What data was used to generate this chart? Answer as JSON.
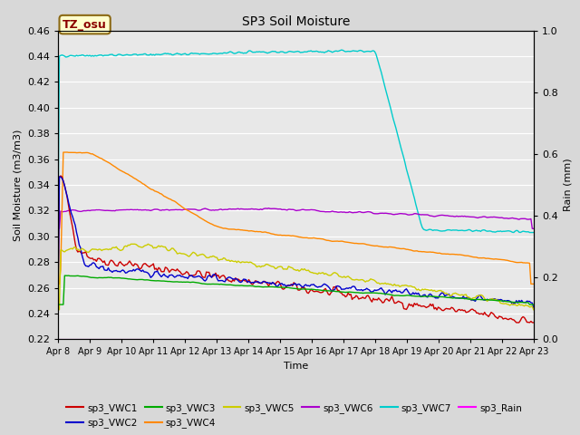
{
  "title": "SP3 Soil Moisture",
  "xlabel": "Time",
  "ylabel_left": "Soil Moisture (m3/m3)",
  "ylabel_right": "Rain (mm)",
  "tz_label": "TZ_osu",
  "ylim_left": [
    0.22,
    0.46
  ],
  "ylim_right": [
    0.0,
    1.0
  ],
  "x_tick_labels": [
    "Apr 8",
    "Apr 9",
    "Apr 10",
    "Apr 11",
    "Apr 12",
    "Apr 13",
    "Apr 14",
    "Apr 15",
    "Apr 16",
    "Apr 17",
    "Apr 18",
    "Apr 19",
    "Apr 20",
    "Apr 21",
    "Apr 22",
    "Apr 23"
  ],
  "background_color": "#e8e8e8",
  "grid_color": "#ffffff",
  "series_colors": {
    "sp3_VWC1": "#cc0000",
    "sp3_VWC2": "#0000cc",
    "sp3_VWC3": "#00aa00",
    "sp3_VWC4": "#ff8800",
    "sp3_VWC5": "#cccc00",
    "sp3_VWC6": "#aa00cc",
    "sp3_VWC7": "#00cccc",
    "sp3_Rain": "#ff00ff"
  },
  "fig_facecolor": "#d8d8d8",
  "legend_ncol": 6,
  "legend_ncol2": 2
}
